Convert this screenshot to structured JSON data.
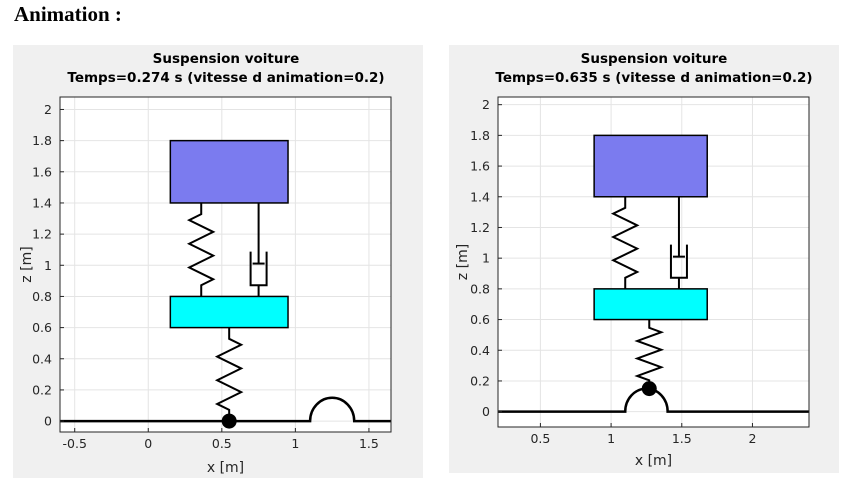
{
  "heading": "Animation :",
  "chart_data": [
    {
      "type": "animation-frame",
      "title": "Suspension voiture",
      "subtitle": "Temps=0.274 s (vitesse d animation=0.2)",
      "xlabel": "x [m]",
      "ylabel": "z [m]",
      "xlim": [
        -0.6,
        1.65
      ],
      "ylim": [
        -0.07,
        2.08
      ],
      "xticks": [
        -0.5,
        0,
        0.5,
        1,
        1.5
      ],
      "xtick_labels": [
        "-0.5",
        "0",
        "0.5",
        "1",
        "1.5"
      ],
      "yticks": [
        0,
        0.2,
        0.4,
        0.6,
        0.8,
        1,
        1.2,
        1.4,
        1.6,
        1.8,
        2
      ],
      "ytick_labels": [
        "0",
        "0.2",
        "0.4",
        "0.6",
        "0.8",
        "1",
        "1.2",
        "1.4",
        "1.6",
        "1.8",
        "2"
      ],
      "grid": true,
      "colors": {
        "body": "#7b7bef",
        "wheel_mass": "#00ffff",
        "ground": "#000000"
      },
      "body_mass": {
        "x": [
          0.15,
          0.95
        ],
        "y": [
          1.4,
          1.8
        ]
      },
      "wheel_mass": {
        "x": [
          0.15,
          0.95
        ],
        "y": [
          0.6,
          0.8
        ]
      },
      "spring_x": 0.36,
      "damper_x": 0.75,
      "tire_x": 0.55,
      "contact_point": {
        "x": 0.55,
        "y": 0.0
      },
      "bump": {
        "center": 1.25,
        "radius": 0.15
      },
      "road_x": [
        -0.6,
        1.65
      ]
    },
    {
      "type": "animation-frame",
      "title": "Suspension voiture",
      "subtitle": "Temps=0.635 s (vitesse d animation=0.2)",
      "xlabel": "x [m]",
      "ylabel": "z [m]",
      "xlim": [
        0.2,
        2.4
      ],
      "ylim": [
        -0.1,
        2.05
      ],
      "xticks": [
        0.5,
        1,
        1.5,
        2
      ],
      "xtick_labels": [
        "0.5",
        "1",
        "1.5",
        "2"
      ],
      "yticks": [
        0,
        0.2,
        0.4,
        0.6,
        0.8,
        1,
        1.2,
        1.4,
        1.6,
        1.8,
        2
      ],
      "ytick_labels": [
        "0",
        "0.2",
        "0.4",
        "0.6",
        "0.8",
        "1",
        "1.2",
        "1.4",
        "1.6",
        "1.8",
        "2"
      ],
      "grid": true,
      "colors": {
        "body": "#7b7bef",
        "wheel_mass": "#00ffff",
        "ground": "#000000"
      },
      "body_mass": {
        "x": [
          0.88,
          1.68
        ],
        "y": [
          1.4,
          1.8
        ]
      },
      "wheel_mass": {
        "x": [
          0.88,
          1.68
        ],
        "y": [
          0.6,
          0.8
        ]
      },
      "spring_x": 1.1,
      "damper_x": 1.48,
      "tire_x": 1.27,
      "contact_point": {
        "x": 1.27,
        "y": 0.15
      },
      "bump": {
        "center": 1.25,
        "radius": 0.15
      },
      "road_x": [
        0.2,
        2.4
      ]
    }
  ]
}
